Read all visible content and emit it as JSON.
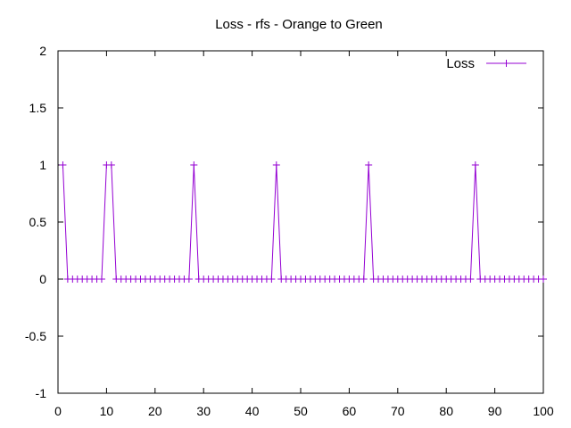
{
  "chart_data": {
    "type": "line",
    "title": "Loss - rfs - Orange to Green",
    "xlabel": "",
    "ylabel": "",
    "xlim": [
      0,
      100
    ],
    "ylim": [
      -1,
      2
    ],
    "xticks": [
      "0",
      "10",
      "20",
      "30",
      "40",
      "50",
      "60",
      "70",
      "80",
      "90",
      "100"
    ],
    "yticks": [
      "-1",
      "-0.5",
      "0",
      "0.5",
      "1",
      "1.5",
      "2"
    ],
    "grid": false,
    "legend_position": "top-right",
    "series": [
      {
        "name": "Loss",
        "color": "#9400d3",
        "marker": "plus",
        "x": [
          1,
          2,
          3,
          4,
          5,
          6,
          7,
          8,
          9,
          10,
          11,
          12,
          13,
          14,
          15,
          16,
          17,
          18,
          19,
          20,
          21,
          22,
          23,
          24,
          25,
          26,
          27,
          28,
          29,
          30,
          31,
          32,
          33,
          34,
          35,
          36,
          37,
          38,
          39,
          40,
          41,
          42,
          43,
          44,
          45,
          46,
          47,
          48,
          49,
          50,
          51,
          52,
          53,
          54,
          55,
          56,
          57,
          58,
          59,
          60,
          61,
          62,
          63,
          64,
          65,
          66,
          67,
          68,
          69,
          70,
          71,
          72,
          73,
          74,
          75,
          76,
          77,
          78,
          79,
          80,
          81,
          82,
          83,
          84,
          85,
          86,
          87,
          88,
          89,
          90,
          91,
          92,
          93,
          94,
          95,
          96,
          97,
          98,
          99,
          100
        ],
        "y": [
          1,
          0,
          0,
          0,
          0,
          0,
          0,
          0,
          0,
          1,
          1,
          0,
          0,
          0,
          0,
          0,
          0,
          0,
          0,
          0,
          0,
          0,
          0,
          0,
          0,
          0,
          0,
          1,
          0,
          0,
          0,
          0,
          0,
          0,
          0,
          0,
          0,
          0,
          0,
          0,
          0,
          0,
          0,
          0,
          1,
          0,
          0,
          0,
          0,
          0,
          0,
          0,
          0,
          0,
          0,
          0,
          0,
          0,
          0,
          0,
          0,
          0,
          0,
          1,
          0,
          0,
          0,
          0,
          0,
          0,
          0,
          0,
          0,
          0,
          0,
          0,
          0,
          0,
          0,
          0,
          0,
          0,
          0,
          0,
          0,
          1,
          0,
          0,
          0,
          0,
          0,
          0,
          0,
          0,
          0,
          0,
          0,
          0,
          0,
          0
        ]
      }
    ]
  }
}
